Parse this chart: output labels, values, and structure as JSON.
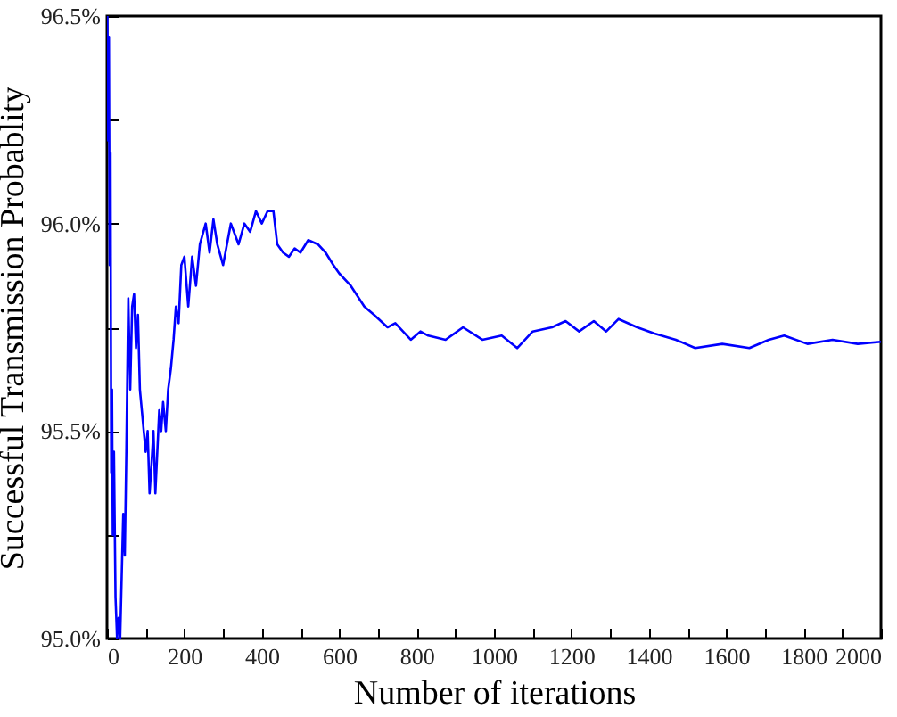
{
  "chart_data": {
    "type": "line",
    "xlabel": "Number of  iterations",
    "ylabel": "Successful Transmission Probablity",
    "x": [
      1,
      3,
      5,
      7,
      9,
      11,
      13,
      15,
      18,
      22,
      26,
      30,
      34,
      38,
      42,
      46,
      50,
      55,
      60,
      65,
      70,
      75,
      80,
      85,
      90,
      95,
      100,
      105,
      110,
      115,
      120,
      125,
      130,
      135,
      140,
      145,
      152,
      158,
      165,
      172,
      178,
      185,
      192,
      200,
      210,
      220,
      230,
      240,
      255,
      265,
      275,
      285,
      300,
      320,
      340,
      355,
      370,
      385,
      400,
      415,
      430,
      440,
      455,
      470,
      485,
      500,
      520,
      545,
      565,
      585,
      600,
      630,
      665,
      690,
      725,
      745,
      785,
      810,
      830,
      875,
      920,
      970,
      1020,
      1060,
      1100,
      1150,
      1185,
      1220,
      1258,
      1290,
      1322,
      1370,
      1415,
      1470,
      1520,
      1590,
      1660,
      1710,
      1750,
      1810,
      1875,
      1940,
      2000
    ],
    "series": [
      {
        "color": "#0000ff",
        "values": [
          96.5,
          96.2,
          96.45,
          95.9,
          96.17,
          95.4,
          95.6,
          95.25,
          95.45,
          95.1,
          95.0,
          95.05,
          95.0,
          95.15,
          95.3,
          95.2,
          95.45,
          95.82,
          95.6,
          95.8,
          95.83,
          95.7,
          95.78,
          95.6,
          95.55,
          95.5,
          95.45,
          95.5,
          95.35,
          95.42,
          95.5,
          95.35,
          95.45,
          95.55,
          95.5,
          95.57,
          95.5,
          95.6,
          95.65,
          95.72,
          95.8,
          95.76,
          95.9,
          95.92,
          95.8,
          95.92,
          95.85,
          95.95,
          96.0,
          95.93,
          96.01,
          95.95,
          95.9,
          96.0,
          95.95,
          96.0,
          95.98,
          96.03,
          96.0,
          96.03,
          96.03,
          95.95,
          95.93,
          95.92,
          95.94,
          95.93,
          95.96,
          95.95,
          95.93,
          95.9,
          95.88,
          95.85,
          95.8,
          95.78,
          95.75,
          95.76,
          95.72,
          95.74,
          95.73,
          95.72,
          95.75,
          95.72,
          95.73,
          95.7,
          95.74,
          95.75,
          95.765,
          95.74,
          95.765,
          95.74,
          95.77,
          95.75,
          95.735,
          95.72,
          95.7,
          95.71,
          95.7,
          95.72,
          95.73,
          95.71,
          95.72,
          95.71,
          95.715
        ]
      }
    ],
    "xlim": [
      0,
      2000
    ],
    "xticks": [
      0,
      {
        "value": 100,
        "label": null
      },
      200,
      {
        "value": 300,
        "label": null
      },
      400,
      {
        "value": 500,
        "label": null
      },
      600,
      {
        "value": 700,
        "label": null
      },
      800,
      {
        "value": 900,
        "label": null
      },
      1000,
      {
        "value": 1100,
        "label": null
      },
      1200,
      {
        "value": 1300,
        "label": null
      },
      1400,
      {
        "value": 1500,
        "label": null
      },
      1600,
      {
        "value": 1700,
        "label": null
      },
      1800,
      {
        "value": 1900,
        "label": null
      },
      2000
    ],
    "ylim": [
      95.0,
      96.5
    ],
    "yticks": [
      {
        "value": 95.0,
        "label": "95.0%"
      },
      {
        "value": 95.25,
        "label": null
      },
      {
        "value": 95.5,
        "label": "95.5%"
      },
      {
        "value": 95.75,
        "label": null
      },
      {
        "value": 96.0,
        "label": "96.0%"
      },
      {
        "value": 96.25,
        "label": null
      },
      {
        "value": 96.5,
        "label": "96.5%"
      }
    ],
    "marker": "none",
    "line_style": "solid"
  }
}
